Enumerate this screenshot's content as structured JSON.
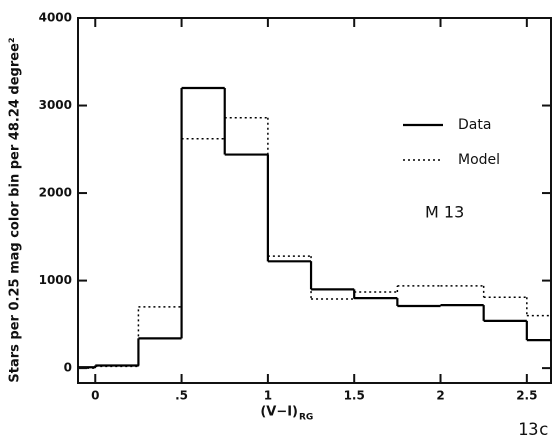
{
  "chart_data": {
    "type": "histogram",
    "ylabel": "Stars per 0.25 mag color bin per 48.24 degree²",
    "xlabel": "(V−I)",
    "xlabel_subscript": "RG",
    "annotation": "M 13",
    "corner_label": "13c",
    "bins": [
      -0.25,
      0,
      0.25,
      0.5,
      0.75,
      1,
      1.25,
      1.5,
      1.75,
      2,
      2.25,
      2.5,
      2.75
    ],
    "series": [
      {
        "name": "Data",
        "color": "#000000",
        "dash": "solid",
        "values": [
          10,
          30,
          340,
          3200,
          2440,
          1220,
          900,
          800,
          710,
          720,
          540,
          320
        ]
      },
      {
        "name": "Model",
        "color": "#000000",
        "dash": "dotted",
        "values": [
          0,
          20,
          700,
          2620,
          2860,
          1280,
          790,
          870,
          940,
          940,
          810,
          600
        ]
      }
    ],
    "xlim": [
      -0.1,
      2.64
    ],
    "ylim": [
      -170,
      4000
    ],
    "xticks": [
      0,
      {
        "value": 0.5,
        "label": ".5"
      },
      1,
      1.5,
      2,
      2.5
    ],
    "yticks": [
      0,
      1000,
      2000,
      3000,
      4000
    ],
    "legend": "upper right"
  }
}
